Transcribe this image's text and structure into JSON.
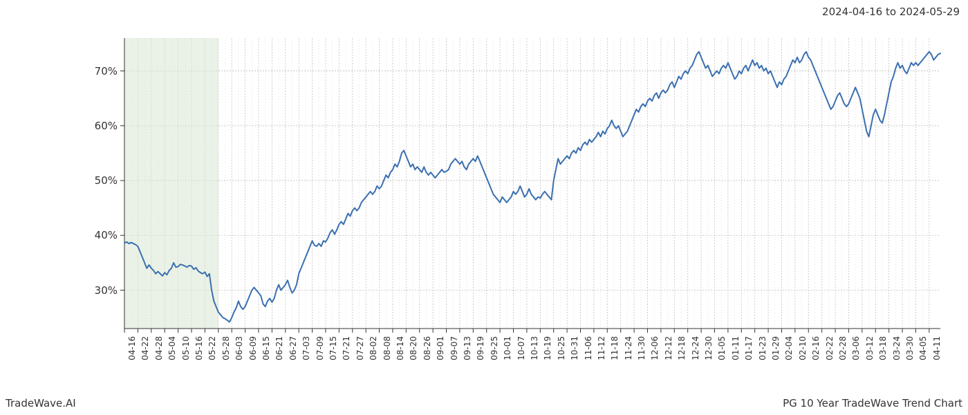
{
  "header": {
    "date_range": "2024-04-16 to 2024-05-29"
  },
  "footer": {
    "brand": "TradeWave.AI",
    "title": "PG 10 Year TradeWave Trend Chart"
  },
  "chart": {
    "type": "line",
    "background_color": "#ffffff",
    "line_color": "#3a6fb0",
    "line_width": 2,
    "highlight_band": {
      "fill": "#d9e8d4",
      "opacity": 0.55,
      "x_start_index": 0,
      "x_end_index": 7
    },
    "grid": {
      "major_color": "#bfbfbf",
      "major_width": 0.8,
      "major_dash": "2,2",
      "minor_color": "#d9d9d9",
      "minor_width": 0.6,
      "minor_dash": "1,2"
    },
    "axes_color": "#333333",
    "y_axis": {
      "min": 23,
      "max": 76,
      "ticks": [
        30,
        40,
        50,
        60,
        70
      ],
      "tick_labels": [
        "30%",
        "40%",
        "50%",
        "60%",
        "70%"
      ],
      "label_fontsize": 15
    },
    "x_axis": {
      "labels": [
        "04-16",
        "04-22",
        "04-28",
        "05-04",
        "05-10",
        "05-16",
        "05-22",
        "05-28",
        "06-03",
        "06-09",
        "06-15",
        "06-21",
        "06-27",
        "07-03",
        "07-09",
        "07-15",
        "07-21",
        "07-27",
        "08-02",
        "08-08",
        "08-14",
        "08-20",
        "08-26",
        "09-01",
        "09-07",
        "09-13",
        "09-19",
        "09-25",
        "10-01",
        "10-07",
        "10-13",
        "10-19",
        "10-25",
        "10-31",
        "11-06",
        "11-12",
        "11-18",
        "11-24",
        "11-30",
        "12-06",
        "12-12",
        "12-18",
        "12-24",
        "12-30",
        "01-05",
        "01-11",
        "01-17",
        "01-23",
        "01-29",
        "02-04",
        "02-10",
        "02-16",
        "02-22",
        "02-28",
        "03-06",
        "03-12",
        "03-18",
        "03-24",
        "03-30",
        "04-05",
        "04-11"
      ],
      "label_fontsize": 12,
      "label_rotation": -90,
      "points_per_label": 6
    },
    "series": {
      "values": [
        38.6,
        38.8,
        38.5,
        38.7,
        38.5,
        38.3,
        38.0,
        37.0,
        36.0,
        35.0,
        34.0,
        34.6,
        34.0,
        33.6,
        33.0,
        33.4,
        33.0,
        32.6,
        33.2,
        32.8,
        33.6,
        34.0,
        35.0,
        34.2,
        34.3,
        34.7,
        34.6,
        34.4,
        34.2,
        34.5,
        34.4,
        33.8,
        34.1,
        33.5,
        33.2,
        33.0,
        33.3,
        32.5,
        33.0,
        30.0,
        28.0,
        27.0,
        26.0,
        25.5,
        25.0,
        24.8,
        24.5,
        24.2,
        25.0,
        26.0,
        26.8,
        28.0,
        27.0,
        26.5,
        27.0,
        28.0,
        29.0,
        30.0,
        30.5,
        30.0,
        29.5,
        29.0,
        27.5,
        27.0,
        28.0,
        28.5,
        27.8,
        28.5,
        30.0,
        31.0,
        30.0,
        30.5,
        31.0,
        31.8,
        30.5,
        29.5,
        30.0,
        31.0,
        33.0,
        34.0,
        35.0,
        36.0,
        37.0,
        38.0,
        39.0,
        38.2,
        38.0,
        38.5,
        38.0,
        39.0,
        38.8,
        39.5,
        40.5,
        41.0,
        40.2,
        41.0,
        42.0,
        42.5,
        42.0,
        43.0,
        44.0,
        43.5,
        44.5,
        45.0,
        44.5,
        45.0,
        46.0,
        46.5,
        47.0,
        47.5,
        48.0,
        47.5,
        48.0,
        49.0,
        48.5,
        49.0,
        50.0,
        51.0,
        50.5,
        51.5,
        52.0,
        53.0,
        52.5,
        53.5,
        55.0,
        55.5,
        54.5,
        53.5,
        52.5,
        53.0,
        52.0,
        52.5,
        52.0,
        51.5,
        52.5,
        51.5,
        51.0,
        51.5,
        51.0,
        50.5,
        51.0,
        51.5,
        52.0,
        51.5,
        51.7,
        52.0,
        53.0,
        53.5,
        54.0,
        53.5,
        53.0,
        53.5,
        52.5,
        52.0,
        53.0,
        53.5,
        54.0,
        53.5,
        54.5,
        53.5,
        52.5,
        51.5,
        50.5,
        49.5,
        48.5,
        47.5,
        47.0,
        46.5,
        46.0,
        47.0,
        46.5,
        46.0,
        46.5,
        47.0,
        48.0,
        47.5,
        48.0,
        49.0,
        48.0,
        47.0,
        47.5,
        48.5,
        47.5,
        47.0,
        46.5,
        47.0,
        46.8,
        47.5,
        48.0,
        47.5,
        47.0,
        46.5,
        50.0,
        52.0,
        54.0,
        53.0,
        53.5,
        54.0,
        54.5,
        54.0,
        55.0,
        55.5,
        55.0,
        56.0,
        55.5,
        56.5,
        57.0,
        56.5,
        57.5,
        57.0,
        57.5,
        58.0,
        58.8,
        58.0,
        59.0,
        58.5,
        59.5,
        60.0,
        61.0,
        60.0,
        59.5,
        60.0,
        59.0,
        58.0,
        58.5,
        59.0,
        60.0,
        61.0,
        62.0,
        63.0,
        62.5,
        63.5,
        64.0,
        63.5,
        64.5,
        65.0,
        64.5,
        65.5,
        66.0,
        65.0,
        66.0,
        66.5,
        66.0,
        66.5,
        67.5,
        68.0,
        67.0,
        68.0,
        69.0,
        68.5,
        69.5,
        70.0,
        69.5,
        70.5,
        71.0,
        72.0,
        73.0,
        73.5,
        72.5,
        71.5,
        70.5,
        71.0,
        70.0,
        69.0,
        69.5,
        70.0,
        69.5,
        70.5,
        71.0,
        70.5,
        71.5,
        70.5,
        69.5,
        68.5,
        69.0,
        70.0,
        69.5,
        70.5,
        71.0,
        70.0,
        71.0,
        72.0,
        71.0,
        71.5,
        70.5,
        71.0,
        70.0,
        70.5,
        69.5,
        70.0,
        69.0,
        68.0,
        67.0,
        68.0,
        67.5,
        68.5,
        69.0,
        70.0,
        71.0,
        72.0,
        71.5,
        72.5,
        71.5,
        72.0,
        73.0,
        73.5,
        72.5,
        72.0,
        71.0,
        70.0,
        69.0,
        68.0,
        67.0,
        66.0,
        65.0,
        64.0,
        63.0,
        63.5,
        64.5,
        65.5,
        66.0,
        65.0,
        64.0,
        63.5,
        64.0,
        65.0,
        66.0,
        67.0,
        66.0,
        65.0,
        63.0,
        61.0,
        59.0,
        58.0,
        60.0,
        62.0,
        63.0,
        62.0,
        61.0,
        60.5,
        62.0,
        64.0,
        66.0,
        68.0,
        69.0,
        70.5,
        71.5,
        70.5,
        71.0,
        70.0,
        69.5,
        70.5,
        71.5,
        71.0,
        71.5,
        71.0,
        71.5,
        72.0,
        72.5,
        73.0,
        73.5,
        73.0,
        72.0,
        72.5,
        73.0,
        73.2
      ]
    }
  }
}
